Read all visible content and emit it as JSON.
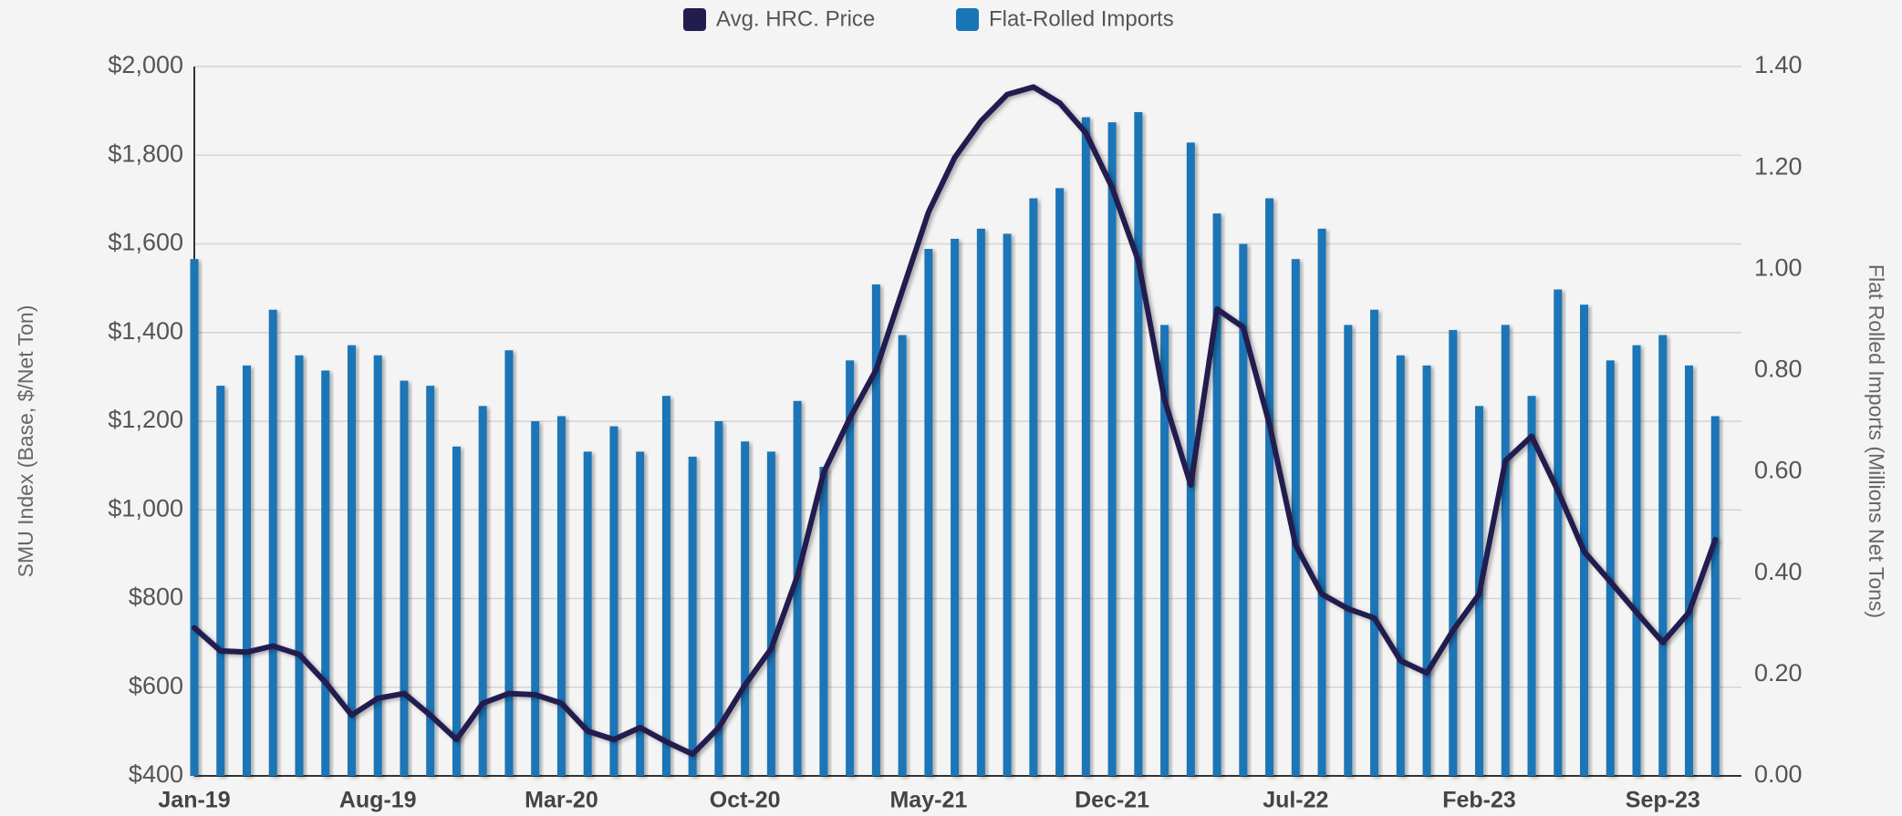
{
  "chart_data": {
    "type": "bar_line",
    "categories": [
      "Jan-19",
      null,
      null,
      null,
      null,
      null,
      null,
      "Aug-19",
      null,
      null,
      null,
      null,
      null,
      null,
      "Mar-20",
      null,
      null,
      null,
      null,
      null,
      null,
      "Oct-20",
      null,
      null,
      null,
      null,
      null,
      null,
      "May-21",
      null,
      null,
      null,
      null,
      null,
      null,
      "Dec-21",
      null,
      null,
      null,
      null,
      null,
      null,
      "Jul-22",
      null,
      null,
      null,
      null,
      null,
      null,
      "Feb-23",
      null,
      null,
      null,
      null,
      null,
      null,
      "Sep-23",
      null,
      null
    ],
    "series": [
      {
        "name": "Avg. HRC. Price",
        "color": "#221d4f",
        "type": "line",
        "axis": "y",
        "values": [
          734,
          682,
          679,
          693,
          674,
          611,
          537,
          575,
          586,
          537,
          482,
          564,
          586,
          583,
          564,
          501,
          482,
          509,
          477,
          449,
          509,
          605,
          687,
          851,
          1084,
          1207,
          1316,
          1494,
          1672,
          1795,
          1877,
          1937,
          1954,
          1918,
          1850,
          1727,
          1562,
          1248,
          1056,
          1453,
          1412,
          1193,
          920,
          810,
          777,
          756,
          660,
          632,
          728,
          810,
          1111,
          1166,
          1043,
          906,
          838,
          769,
          701,
          769,
          933
        ]
      },
      {
        "name": "Flat-Rolled Imports",
        "color": "#1a75b6",
        "type": "bar",
        "axis": "y2",
        "values": [
          1.02,
          0.77,
          0.81,
          0.92,
          0.83,
          0.8,
          0.85,
          0.83,
          0.78,
          0.77,
          0.65,
          0.73,
          0.84,
          0.7,
          0.71,
          0.64,
          0.69,
          0.64,
          0.75,
          0.63,
          0.7,
          0.66,
          0.64,
          0.74,
          0.61,
          0.82,
          0.97,
          0.87,
          1.04,
          1.06,
          1.08,
          1.07,
          1.14,
          1.16,
          1.3,
          1.29,
          1.31,
          0.89,
          1.25,
          1.11,
          1.05,
          1.14,
          1.02,
          1.08,
          0.89,
          0.92,
          0.83,
          0.81,
          0.88,
          0.73,
          0.89,
          0.75,
          0.96,
          0.93,
          0.82,
          0.85,
          0.87,
          0.81,
          0.71
        ]
      }
    ],
    "ylabel": "SMU Index (Base, $/Net Ton)",
    "y2label": "Flat Rolled Imports (Millions Net Tons)",
    "ylim": [
      400,
      2000
    ],
    "yticks": [
      {
        "value": 400,
        "label": "$400"
      },
      {
        "value": 600,
        "label": "$600"
      },
      {
        "value": 800,
        "label": "$800"
      },
      {
        "value": 1000,
        "label": "$1,000"
      },
      {
        "value": 1200,
        "label": "$1,200"
      },
      {
        "value": 1400,
        "label": "$1,400"
      },
      {
        "value": 1600,
        "label": "$1,600"
      },
      {
        "value": 1800,
        "label": "$1,800"
      },
      {
        "value": 2000,
        "label": "$2,000"
      }
    ],
    "y2lim": [
      0,
      1.4
    ],
    "y2ticks": [
      {
        "value": 0,
        "label": "0.00"
      },
      {
        "value": 0.2,
        "label": "0.20"
      },
      {
        "value": 0.4,
        "label": "0.40"
      },
      {
        "value": 0.6,
        "label": "0.60"
      },
      {
        "value": 0.8,
        "label": "0.80"
      },
      {
        "value": 1,
        "label": "1.00"
      },
      {
        "value": 1.2,
        "label": "1.20"
      },
      {
        "value": 1.4,
        "label": "1.40"
      }
    ],
    "grid": true,
    "legend": "top"
  }
}
